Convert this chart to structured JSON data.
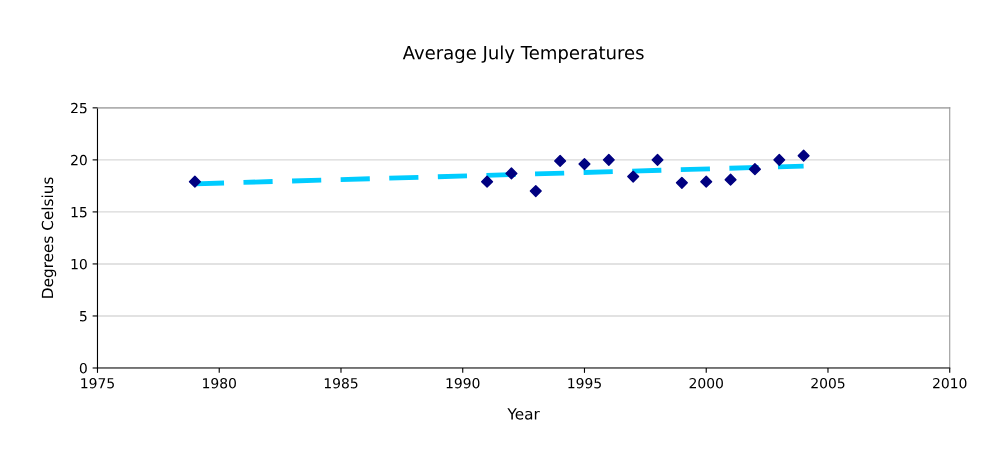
{
  "chart_data": {
    "type": "scatter",
    "title": "Average July Temperatures",
    "xlabel": "Year",
    "ylabel": "Degrees Celsius",
    "xlim": [
      1975,
      2010
    ],
    "xticks": [
      1975,
      1980,
      1985,
      1990,
      1995,
      2000,
      2005,
      2010
    ],
    "ylim": [
      0,
      25
    ],
    "yticks": [
      0,
      5,
      10,
      15,
      20,
      25
    ],
    "grid": "y",
    "legend": false,
    "series": [
      {
        "color": "#000080",
        "marker": "diamond",
        "x": [
          1979,
          1991,
          1992,
          1993,
          1994,
          1995,
          1996,
          1997,
          1998,
          1999,
          2000,
          2001,
          2002,
          2003,
          2004
        ],
        "values": [
          17.9,
          17.9,
          18.7,
          17.0,
          19.9,
          19.6,
          20.0,
          18.4,
          20.0,
          17.8,
          17.9,
          18.1,
          19.1,
          20.0,
          20.4
        ]
      },
      {
        "type": "line",
        "color": "#00ccff",
        "line_style": "dashed",
        "marker": "none",
        "x": [
          1979,
          2004
        ],
        "values": [
          17.7,
          19.4
        ]
      }
    ]
  }
}
